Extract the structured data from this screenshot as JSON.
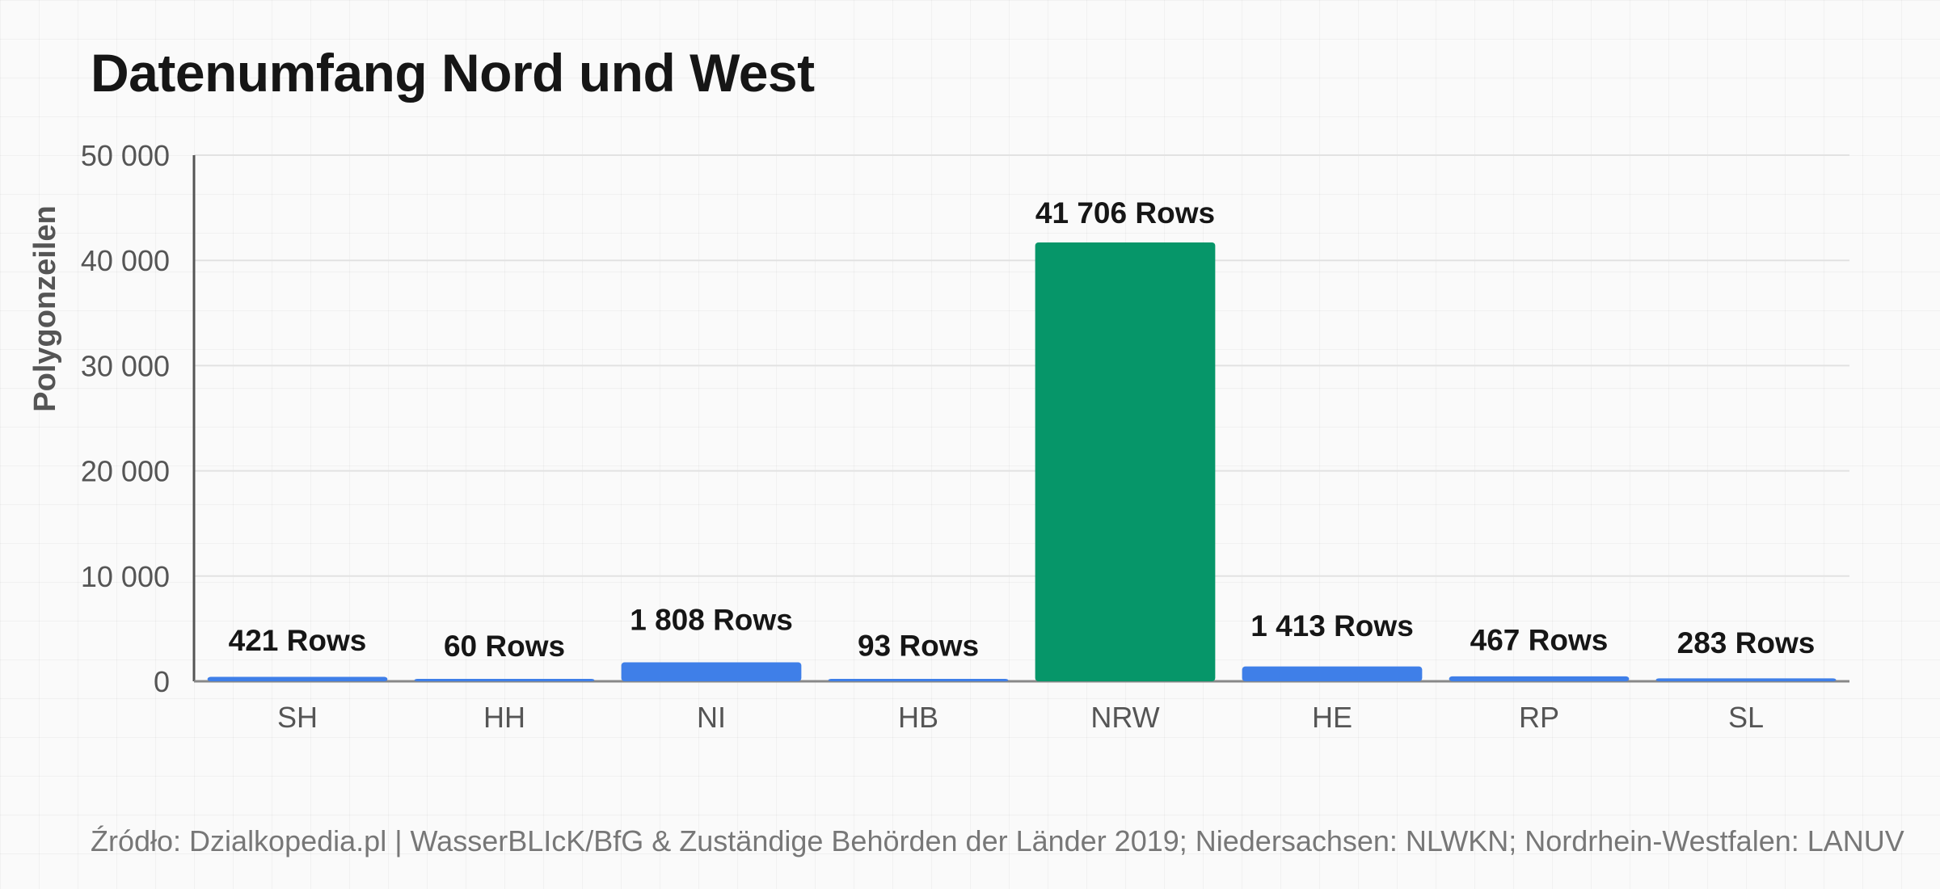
{
  "chart_data": {
    "type": "bar",
    "title": "Datenumfang Nord und West",
    "ylabel": "Polygonzeilen",
    "xlabel": "",
    "ylim": [
      0,
      50000
    ],
    "yticks": [
      0,
      10000,
      20000,
      30000,
      40000,
      50000
    ],
    "ytick_labels": [
      "0",
      "10 000",
      "20 000",
      "30 000",
      "40 000",
      "50 000"
    ],
    "categories": [
      "SH",
      "HH",
      "NI",
      "HB",
      "NRW",
      "HE",
      "RP",
      "SL"
    ],
    "values": [
      421,
      60,
      1808,
      93,
      41706,
      1413,
      467,
      283
    ],
    "data_labels": [
      "421 Rows",
      "60 Rows",
      "1 808 Rows",
      "93 Rows",
      "41 706 Rows",
      "1 413 Rows",
      "467 Rows",
      "283 Rows"
    ],
    "highlight_index": 4,
    "colors": {
      "default": "#3f7fe8",
      "highlight": "#069669",
      "grid": "#e2e2e2",
      "axis": "#555555"
    },
    "grid": true,
    "legend": "none"
  },
  "source": "Źródło: Dzialkopedia.pl | WasserBLIcK/BfG & Zuständige Behörden der Länder 2019; Niedersachsen: NLWKN; Nordrhein-Westfalen: LANUV"
}
